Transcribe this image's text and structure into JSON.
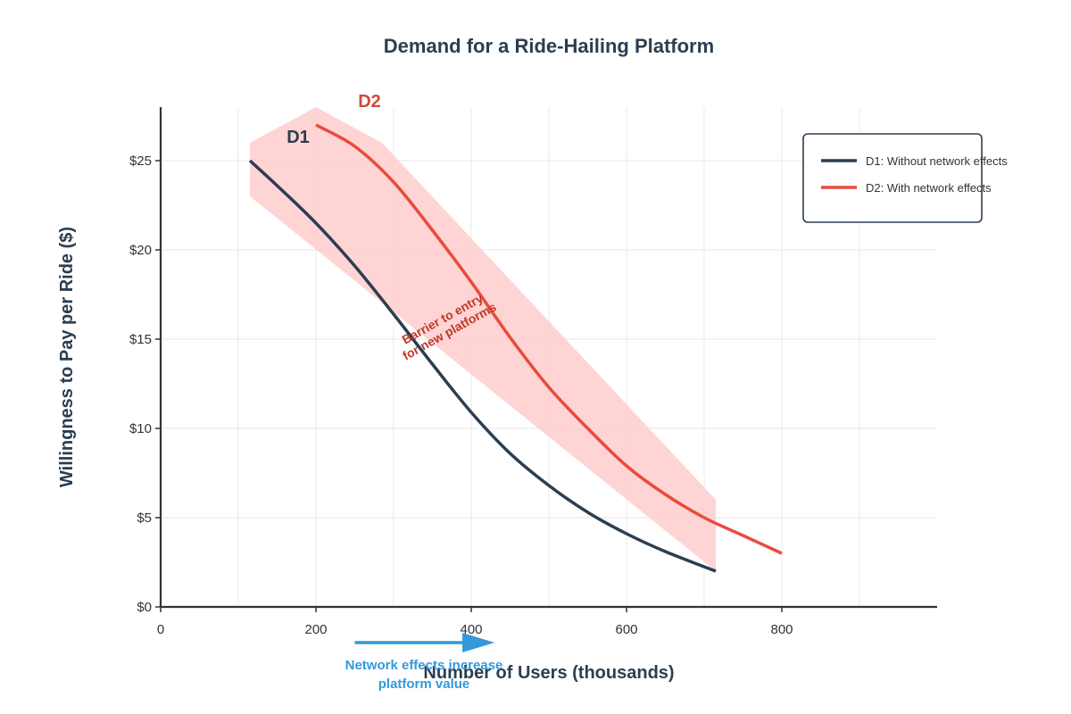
{
  "chart_data": {
    "type": "line",
    "title": "Demand for a Ride-Hailing Platform",
    "xlabel": "Number of Users (thousands)",
    "ylabel": "Willingness to Pay per Ride ($)",
    "xlim": [
      0,
      1000
    ],
    "ylim": [
      0,
      28
    ],
    "x_ticks": [
      0,
      200,
      400,
      600,
      800
    ],
    "x_tick_labels": [
      "0",
      "200",
      "400",
      "600",
      "800"
    ],
    "y_ticks": [
      0,
      5,
      10,
      15,
      20,
      25
    ],
    "y_tick_labels": [
      "$0",
      "$5",
      "$10",
      "$15",
      "$20",
      "$25"
    ],
    "grid": true,
    "legend_position": "top-right",
    "series": [
      {
        "name": "D1: Without network effects",
        "label": "D1",
        "color": "#2c3e50",
        "x": [
          115,
          150,
          200,
          250,
          300,
          350,
          400,
          450,
          500,
          550,
          600,
          650,
          715
        ],
        "y": [
          25,
          23.6,
          21.5,
          19.1,
          16.4,
          13.6,
          10.9,
          8.6,
          6.8,
          5.3,
          4.1,
          3.1,
          2.0
        ]
      },
      {
        "name": "D2: With network effects",
        "label": "D2",
        "color": "#e74c3c",
        "x": [
          200,
          250,
          300,
          350,
          400,
          450,
          500,
          550,
          600,
          650,
          700,
          750,
          800
        ],
        "y": [
          27,
          25.8,
          23.8,
          21.1,
          18.2,
          15.1,
          12.3,
          10.0,
          7.9,
          6.3,
          5.0,
          4.0,
          3.0
        ]
      }
    ],
    "shaded_band": {
      "color": "#ffcccc",
      "upper": {
        "x": [
          115,
          200,
          285,
          715
        ],
        "y": [
          26,
          28,
          26,
          6
        ]
      },
      "lower": {
        "x": [
          115,
          715
        ],
        "y": [
          23,
          2.0
        ]
      }
    },
    "annotations": {
      "barrier_line1": "Barrier to entry",
      "barrier_line2": "for new platforms",
      "network_line1": "Network effects increase",
      "network_line2": "platform value",
      "network_arrow": {
        "x_start": 250,
        "x_end": 430
      }
    }
  }
}
